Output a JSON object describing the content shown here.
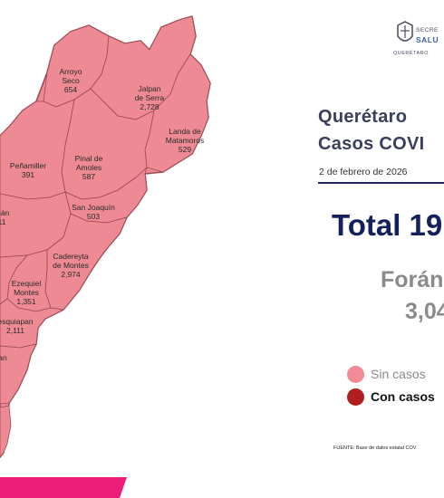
{
  "municipios": [
    {
      "name": "Arroyo Seco",
      "line1": "Arroyo",
      "line2": "Seco",
      "cases": "654"
    },
    {
      "name": "Jalpan de Serra",
      "line1": "Jalpan",
      "line2": "de Serra",
      "cases": "2,728"
    },
    {
      "name": "Landa de Matamoros",
      "line1": "Landa de",
      "line2": "Matamoros",
      "cases": "529"
    },
    {
      "name": "Pinal de Amoles",
      "line1": "Pinal de",
      "line2": "Amoles",
      "cases": "587"
    },
    {
      "name": "Peñamiller",
      "line1": "Peñamiller",
      "line2": "",
      "cases": "391"
    },
    {
      "name": "San Joaquín",
      "line1": "San Joaquín",
      "line2": "",
      "cases": "503"
    },
    {
      "name": "Cadereyta de Montes",
      "line1": "Cadereyta",
      "line2": "de Montes",
      "cases": "2,974"
    },
    {
      "name": "Ezequiel Montes",
      "line1": "Ezequiel",
      "line2": "Montes",
      "cases": "1,351"
    },
    {
      "name": "Tolimán",
      "line1": "mán",
      "line2": "",
      "cases": "11"
    },
    {
      "name": "Tequisquiapan",
      "line1": "esquiapan",
      "line2": "",
      "cases": "2,111"
    },
    {
      "name": "San Juan del Río",
      "line1": "an",
      "line2": "",
      "cases": ""
    }
  ],
  "header": {
    "logo_line1": "SECRE",
    "logo_line2": "SALU",
    "logo_sub": "QUERÉTARO"
  },
  "title_line1": "Querétaro",
  "title_line2": "Casos COVI",
  "date": "2 de febrero de 2026",
  "total": "Total 19",
  "foraneos_label": "Forán",
  "foraneos_value": "3,04",
  "legend": [
    {
      "label": "Sin casos",
      "color": "#f28b96",
      "text_color": "#8a8a8a"
    },
    {
      "label": "Con casos",
      "color": "#b01e1e",
      "text_color": "#111111"
    }
  ],
  "fuente": "FUENTE: Base de datos estatal COV",
  "colors": {
    "map_fill": "#ee8a93",
    "map_stroke": "#9b4a55",
    "footer_magenta": "#ec1d78",
    "footer_pink": "#f7a9c4"
  }
}
